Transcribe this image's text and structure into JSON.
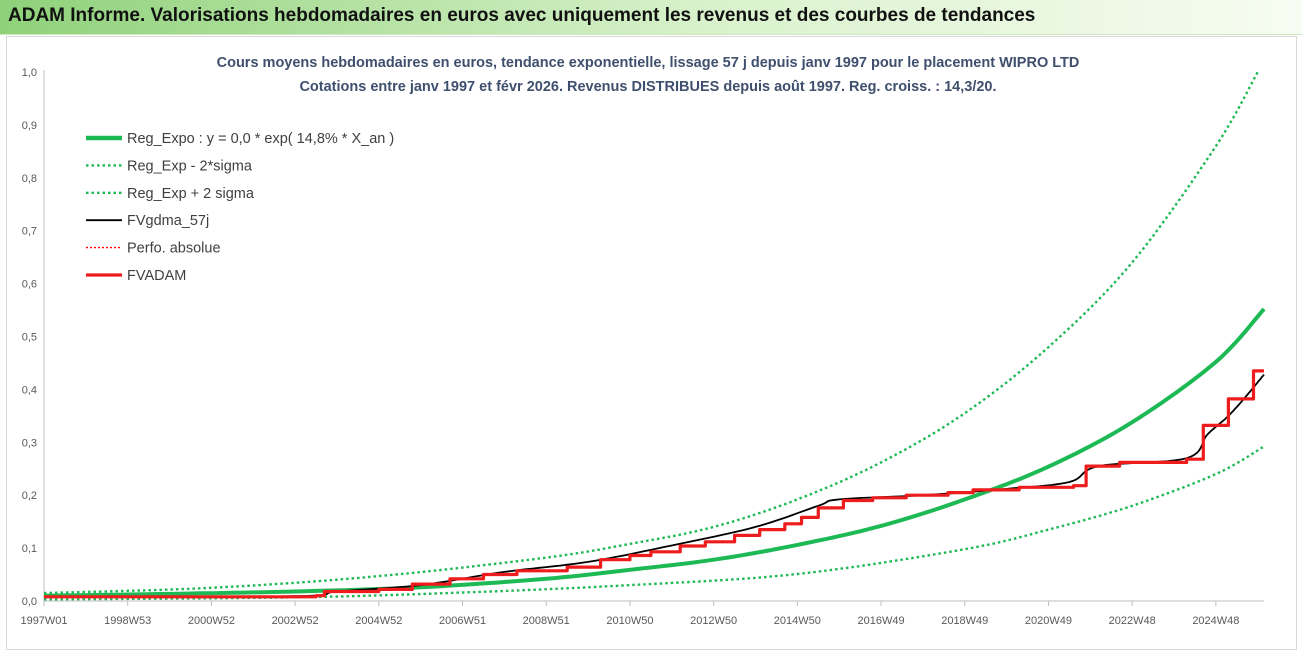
{
  "banner": {
    "title": "ADAM Informe. Valorisations hebdomadaires en euros avec uniquement les revenus et des courbes de tendances"
  },
  "chart_data": {
    "type": "line",
    "title": "Cours moyens hebdomadaires en euros, tendance exponentielle, lissage 57 j depuis janv 1997 pour le placement WIPRO LTD",
    "subtitle": "Cotations entre janv 1997 et févr 2026. Revenus DISTRIBUES depuis août 1997. Reg. croiss. : 14,3/20.",
    "xlabel": "",
    "ylabel": "",
    "x_range": [
      1997.0,
      2026.15
    ],
    "ylim": [
      0,
      1.0
    ],
    "y_ticks": [
      "0,0",
      "0,1",
      "0,2",
      "0,3",
      "0,4",
      "0,5",
      "0,6",
      "0,7",
      "0,8",
      "0,9",
      "1,0"
    ],
    "x_ticks": [
      {
        "label": "1997W01",
        "x": 1997.0
      },
      {
        "label": "1998W53",
        "x": 1999.0
      },
      {
        "label": "2000W52",
        "x": 2001.0
      },
      {
        "label": "2002W52",
        "x": 2003.0
      },
      {
        "label": "2004W52",
        "x": 2005.0
      },
      {
        "label": "2006W51",
        "x": 2007.0
      },
      {
        "label": "2008W51",
        "x": 2009.0
      },
      {
        "label": "2010W50",
        "x": 2011.0
      },
      {
        "label": "2012W50",
        "x": 2013.0
      },
      {
        "label": "2014W50",
        "x": 2015.0
      },
      {
        "label": "2016W49",
        "x": 2017.0
      },
      {
        "label": "2018W49",
        "x": 2019.0
      },
      {
        "label": "2020W49",
        "x": 2021.0
      },
      {
        "label": "2022W48",
        "x": 2023.0
      },
      {
        "label": "2024W48",
        "x": 2025.0
      }
    ],
    "grid": false,
    "legend_position": "top-left",
    "series": [
      {
        "name": "Reg_Expo : y = 0,0 * exp( 14,8% *  X_an )",
        "style": "solid-thick",
        "color": "#1db954",
        "points": [
          [
            1997.0,
            0.01
          ],
          [
            2000.0,
            0.0135
          ],
          [
            2003.0,
            0.018
          ],
          [
            2006.0,
            0.026
          ],
          [
            2009.0,
            0.042
          ],
          [
            2011.0,
            0.059
          ],
          [
            2013.0,
            0.078
          ],
          [
            2015.0,
            0.106
          ],
          [
            2017.0,
            0.142
          ],
          [
            2019.0,
            0.192
          ],
          [
            2021.0,
            0.254
          ],
          [
            2023.0,
            0.338
          ],
          [
            2025.0,
            0.452
          ],
          [
            2026.15,
            0.552
          ]
        ]
      },
      {
        "name": "Reg_Exp - 2*sigma",
        "style": "dotted",
        "color": "#1db954",
        "points": [
          [
            1997.0,
            0.003
          ],
          [
            2003.0,
            0.007
          ],
          [
            2007.0,
            0.016
          ],
          [
            2011.0,
            0.03
          ],
          [
            2015.0,
            0.051
          ],
          [
            2019.0,
            0.098
          ],
          [
            2021.0,
            0.135
          ],
          [
            2023.0,
            0.18
          ],
          [
            2025.0,
            0.24
          ],
          [
            2026.15,
            0.292
          ]
        ]
      },
      {
        "name": "Reg_Exp + 2 sigma",
        "style": "dotted",
        "color": "#1db954",
        "points": [
          [
            1997.0,
            0.015
          ],
          [
            2001.0,
            0.025
          ],
          [
            2005.0,
            0.047
          ],
          [
            2009.0,
            0.082
          ],
          [
            2011.0,
            0.108
          ],
          [
            2013.0,
            0.14
          ],
          [
            2015.0,
            0.192
          ],
          [
            2017.0,
            0.262
          ],
          [
            2019.0,
            0.355
          ],
          [
            2021.0,
            0.48
          ],
          [
            2023.0,
            0.64
          ],
          [
            2025.0,
            0.86
          ],
          [
            2026.0,
            1.0
          ]
        ]
      },
      {
        "name": "FVgdma_57j",
        "style": "solid-thin",
        "color": "#000000",
        "points": [
          [
            1997.0,
            0.008
          ],
          [
            2003.0,
            0.009
          ],
          [
            2004.0,
            0.018
          ],
          [
            2006.0,
            0.03
          ],
          [
            2008.0,
            0.055
          ],
          [
            2010.0,
            0.074
          ],
          [
            2012.0,
            0.105
          ],
          [
            2014.0,
            0.14
          ],
          [
            2015.5,
            0.18
          ],
          [
            2016.0,
            0.192
          ],
          [
            2018.0,
            0.2
          ],
          [
            2020.0,
            0.212
          ],
          [
            2021.5,
            0.225
          ],
          [
            2022.2,
            0.255
          ],
          [
            2024.3,
            0.27
          ],
          [
            2024.8,
            0.315
          ],
          [
            2025.3,
            0.35
          ],
          [
            2025.7,
            0.385
          ],
          [
            2026.15,
            0.428
          ]
        ]
      },
      {
        "name": "Perfo. absolue",
        "style": "dotted-thin",
        "color": "#ff0000",
        "points": []
      },
      {
        "name": "FVADAM",
        "style": "step-thick",
        "color": "#ee1c1c",
        "points": [
          [
            1997.0,
            0.008
          ],
          [
            2003.5,
            0.01
          ],
          [
            2003.7,
            0.018
          ],
          [
            2005.0,
            0.022
          ],
          [
            2005.8,
            0.032
          ],
          [
            2006.7,
            0.042
          ],
          [
            2007.5,
            0.05
          ],
          [
            2008.3,
            0.057
          ],
          [
            2009.5,
            0.064
          ],
          [
            2010.3,
            0.078
          ],
          [
            2011.0,
            0.086
          ],
          [
            2011.5,
            0.093
          ],
          [
            2012.2,
            0.104
          ],
          [
            2012.8,
            0.112
          ],
          [
            2013.5,
            0.124
          ],
          [
            2014.1,
            0.135
          ],
          [
            2014.7,
            0.146
          ],
          [
            2015.1,
            0.158
          ],
          [
            2015.5,
            0.176
          ],
          [
            2016.1,
            0.19
          ],
          [
            2016.8,
            0.195
          ],
          [
            2017.6,
            0.2
          ],
          [
            2018.6,
            0.205
          ],
          [
            2019.2,
            0.21
          ],
          [
            2020.3,
            0.215
          ],
          [
            2021.6,
            0.218
          ],
          [
            2021.9,
            0.255
          ],
          [
            2022.7,
            0.262
          ],
          [
            2024.3,
            0.268
          ],
          [
            2024.7,
            0.332
          ],
          [
            2025.3,
            0.382
          ],
          [
            2025.9,
            0.435
          ]
        ]
      }
    ]
  }
}
